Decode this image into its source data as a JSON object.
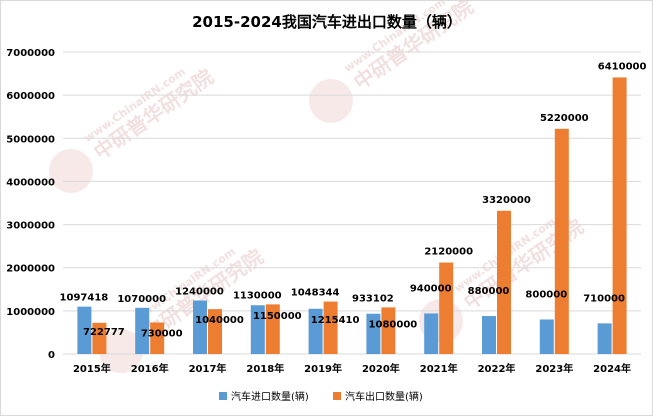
{
  "chart_data": {
    "type": "bar",
    "title": "2015-2024我国汽车进出口数量（辆）",
    "categories": [
      "2015年",
      "2016年",
      "2017年",
      "2018年",
      "2019年",
      "2020年",
      "2021年",
      "2022年",
      "2023年",
      "2024年"
    ],
    "ylim": [
      0,
      7000000
    ],
    "yticks": [
      "0",
      "1000000",
      "2000000",
      "3000000",
      "4000000",
      "5000000",
      "6000000",
      "7000000"
    ],
    "ytick_values": [
      0,
      1000000,
      2000000,
      3000000,
      4000000,
      5000000,
      6000000,
      7000000
    ],
    "grid": true,
    "legend_position": "bottom",
    "series": [
      {
        "name": "汽车进口数量(辆)",
        "color": "#5b9bd5",
        "values": [
          1097418,
          1070000,
          1240000,
          1130000,
          1048344,
          933102,
          940000,
          880000,
          800000,
          710000
        ]
      },
      {
        "name": "汽车出口数量(辆)",
        "color": "#ed7d31",
        "values": [
          722777,
          730000,
          1040000,
          1150000,
          1215410,
          1080000,
          2120000,
          3320000,
          5220000,
          6410000
        ]
      }
    ]
  },
  "watermark": {
    "brand": "中研普华研究院",
    "url": "www.ChinaIRN.com",
    "logo": "CIRN"
  }
}
